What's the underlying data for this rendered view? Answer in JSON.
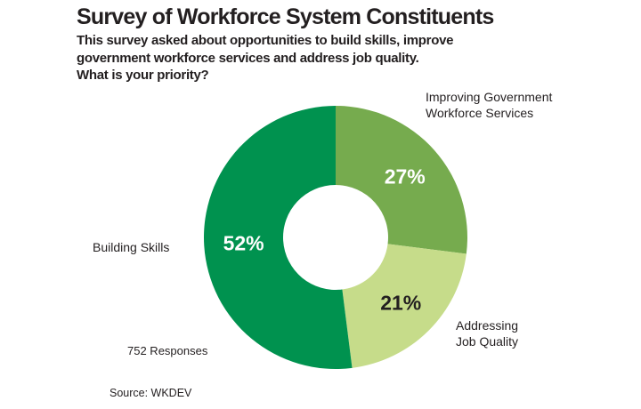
{
  "header": {
    "title": "Survey of Workforce System Constituents",
    "subtitle_lines": [
      "This survey asked about opportunities to build skills, improve",
      "government workforce services and address job quality.",
      "What is your priority?"
    ]
  },
  "chart_data": {
    "type": "pie",
    "subtype": "donut",
    "direction": "clockwise",
    "start_angle_deg": 0,
    "title": "Survey of Workforce System Constituents",
    "segments": [
      {
        "label": "Improving Government Workforce Services",
        "value": 27,
        "pct_label": "27%",
        "color": "#76AB4E",
        "pct_text_color": "#FFFFFF"
      },
      {
        "label": "Addressing Job Quality",
        "value": 21,
        "pct_label": "21%",
        "color": "#C6DC8A",
        "pct_text_color": "#231F20"
      },
      {
        "label": "Building Skills",
        "value": 52,
        "pct_label": "52%",
        "color": "#00924F",
        "pct_text_color": "#FFFFFF"
      }
    ],
    "responses_note": "752 Responses",
    "source": "Source: WKDEV",
    "colors": {
      "text": "#231F20",
      "background": "#FFFFFF"
    },
    "legend_position": "outside-callouts",
    "grid": false
  }
}
